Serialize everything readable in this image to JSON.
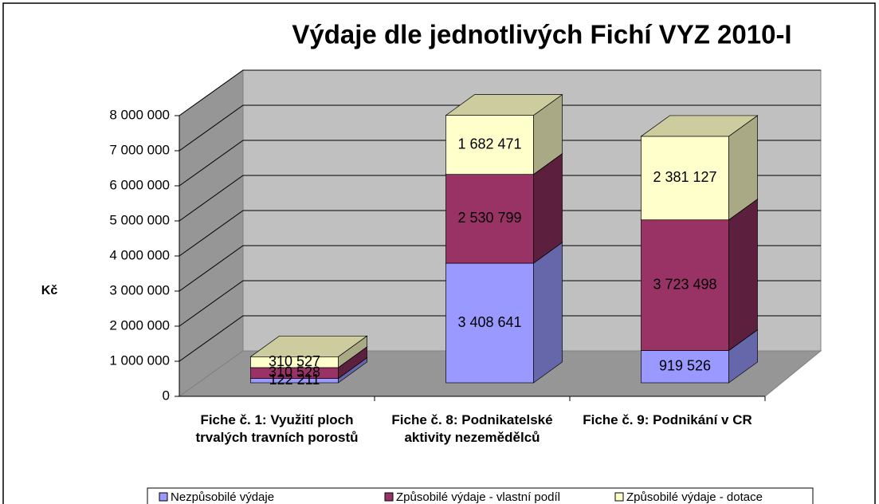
{
  "chart_data": {
    "type": "bar3d_stacked",
    "title": "Výdaje dle jednotlivých Fichí VYZ 2010-I",
    "y_label": "Kč",
    "categories": [
      "Fiche č. 1: Využití ploch trvalých travních porostů",
      "Fiche č. 8: Podnikatelské aktivity nezemědělců",
      "Fiche č. 9: Podnikání v CR"
    ],
    "series": [
      {
        "name": "Nezpůsobilé výdaje",
        "color": "#9999ff",
        "side": "#6666aa",
        "values": [
          122211,
          3408641,
          919526
        ],
        "value_labels": [
          "122 211",
          "3 408 641",
          "919 526"
        ]
      },
      {
        "name": "Způsobilé výdaje - vlastní podíl",
        "color": "#993366",
        "side": "#5c1f3d",
        "values": [
          310528,
          2530799,
          3723498
        ],
        "value_labels": [
          "310 528",
          "2 530 799",
          "3 723 498"
        ]
      },
      {
        "name": "Způsobilé výdaje - dotace",
        "color": "#ffffcc",
        "side": "#a9a985",
        "values": [
          310527,
          1682471,
          2381127
        ],
        "value_labels": [
          "310 527",
          "1 682 471",
          "2 381 127"
        ]
      }
    ],
    "ylim": [
      0,
      8000000
    ],
    "yticks": [
      {
        "value": 0,
        "label": "0"
      },
      {
        "value": 1000000,
        "label": "1 000 000"
      },
      {
        "value": 2000000,
        "label": "2 000 000"
      },
      {
        "value": 3000000,
        "label": "3 000 000"
      },
      {
        "value": 4000000,
        "label": "4 000 000"
      },
      {
        "value": 5000000,
        "label": "5 000 000"
      },
      {
        "value": 6000000,
        "label": "6 000 000"
      },
      {
        "value": 7000000,
        "label": "7 000 000"
      },
      {
        "value": 8000000,
        "label": "8 000 000"
      }
    ],
    "grid": true,
    "legend": "bottom"
  }
}
